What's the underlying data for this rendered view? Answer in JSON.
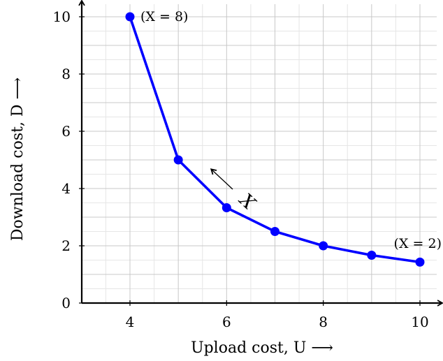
{
  "chart_data": {
    "type": "line",
    "title": "",
    "xlabel": "Upload cost, U ⟶",
    "ylabel": "Download cost, D ⟶",
    "xlim": [
      3,
      10.5
    ],
    "ylim": [
      0,
      10.5
    ],
    "x_ticks": [
      4,
      6,
      8,
      10
    ],
    "y_ticks": [
      0,
      2,
      4,
      6,
      8,
      10
    ],
    "grid": true,
    "line_color": "#0000ff",
    "series": [
      {
        "x": [
          4,
          5,
          6,
          7,
          8,
          9,
          10
        ],
        "y": [
          10,
          5,
          3.33,
          2.5,
          2,
          1.67,
          1.43
        ]
      }
    ],
    "annotations": [
      {
        "text": "(X = 8)",
        "x": 4,
        "y": 10
      },
      {
        "text": "(X = 2)",
        "x": 10,
        "y": 1.43
      }
    ],
    "direction_label": "X"
  }
}
